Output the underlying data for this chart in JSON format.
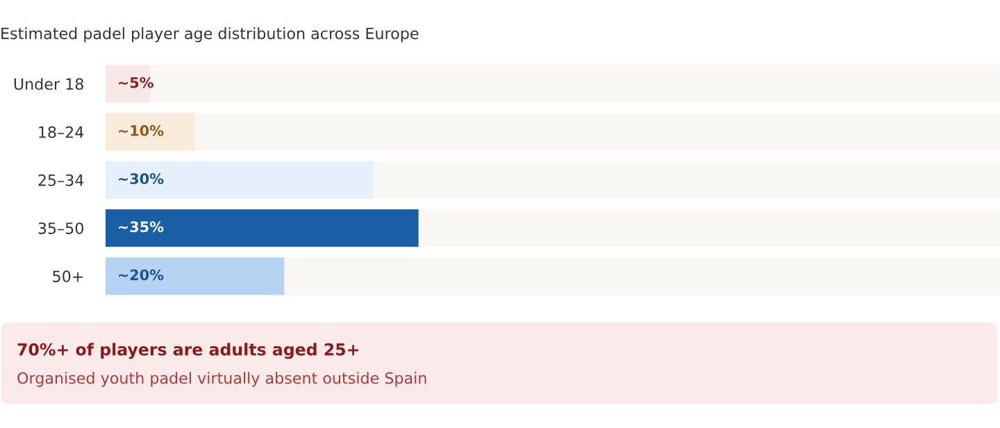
{
  "chart_data": {
    "type": "bar",
    "orientation": "horizontal",
    "stacked": true,
    "title": "Estimated padel player age distribution across Europe",
    "categories": [
      "Under 18",
      "18–24",
      "25–34",
      "35–50",
      "50+"
    ],
    "xlim": [
      0,
      100
    ],
    "tick_labels": "y",
    "series": [
      {
        "colors": [
          "#f9e8e8",
          "#faecdc",
          "#e6f0fa",
          "#1a5fa5",
          "#b6d4f2"
        ],
        "values": [
          5,
          10,
          30,
          35,
          20
        ],
        "value_labels": [
          "~5%",
          "~10%",
          "~30%",
          "~35%",
          "~20%"
        ]
      },
      {
        "color": "#f8f7f4",
        "values": [
          95,
          90,
          70,
          65,
          80
        ]
      }
    ],
    "annotations": [
      "70%+ of players are adults aged 25+",
      "Organised youth padel virtually absent outside Spain"
    ]
  }
}
